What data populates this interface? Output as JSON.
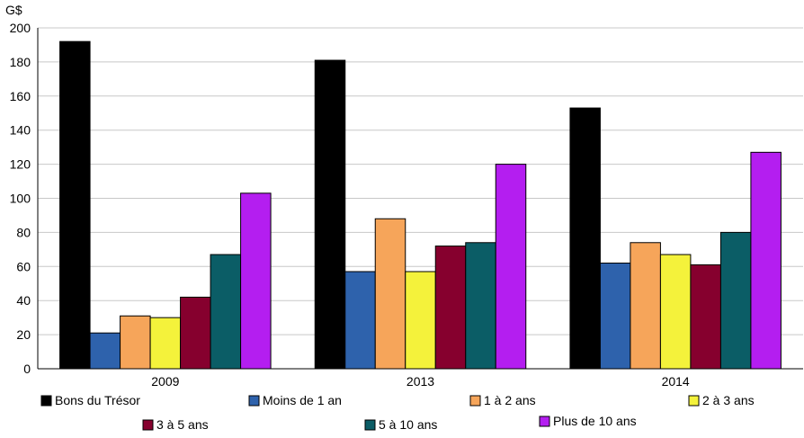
{
  "chart_data": {
    "type": "bar",
    "unit_label": "G$",
    "categories": [
      "2009",
      "2013",
      "2014"
    ],
    "ylim": [
      0,
      200
    ],
    "yticks": [
      0,
      20,
      40,
      60,
      80,
      100,
      120,
      140,
      160,
      180,
      200
    ],
    "grid": true,
    "legend_position": "bottom",
    "series": [
      {
        "name": "Bons du Trésor",
        "color": "#000000",
        "values": [
          192,
          181,
          153
        ]
      },
      {
        "name": "Moins de 1 an",
        "color": "#2e62ac",
        "values": [
          21,
          57,
          62
        ]
      },
      {
        "name": "1 à 2 ans",
        "color": "#f6a55a",
        "values": [
          31,
          88,
          74
        ]
      },
      {
        "name": "2 à 3 ans",
        "color": "#f4f23b",
        "values": [
          30,
          57,
          67
        ]
      },
      {
        "name": "3 à 5 ans",
        "color": "#86002e",
        "values": [
          42,
          72,
          61
        ]
      },
      {
        "name": "5 à 10 ans",
        "color": "#0b5d66",
        "values": [
          67,
          74,
          80
        ]
      },
      {
        "name": "Plus de 10 ans",
        "color": "#b41ef0",
        "values": [
          103,
          120,
          127
        ]
      }
    ]
  }
}
